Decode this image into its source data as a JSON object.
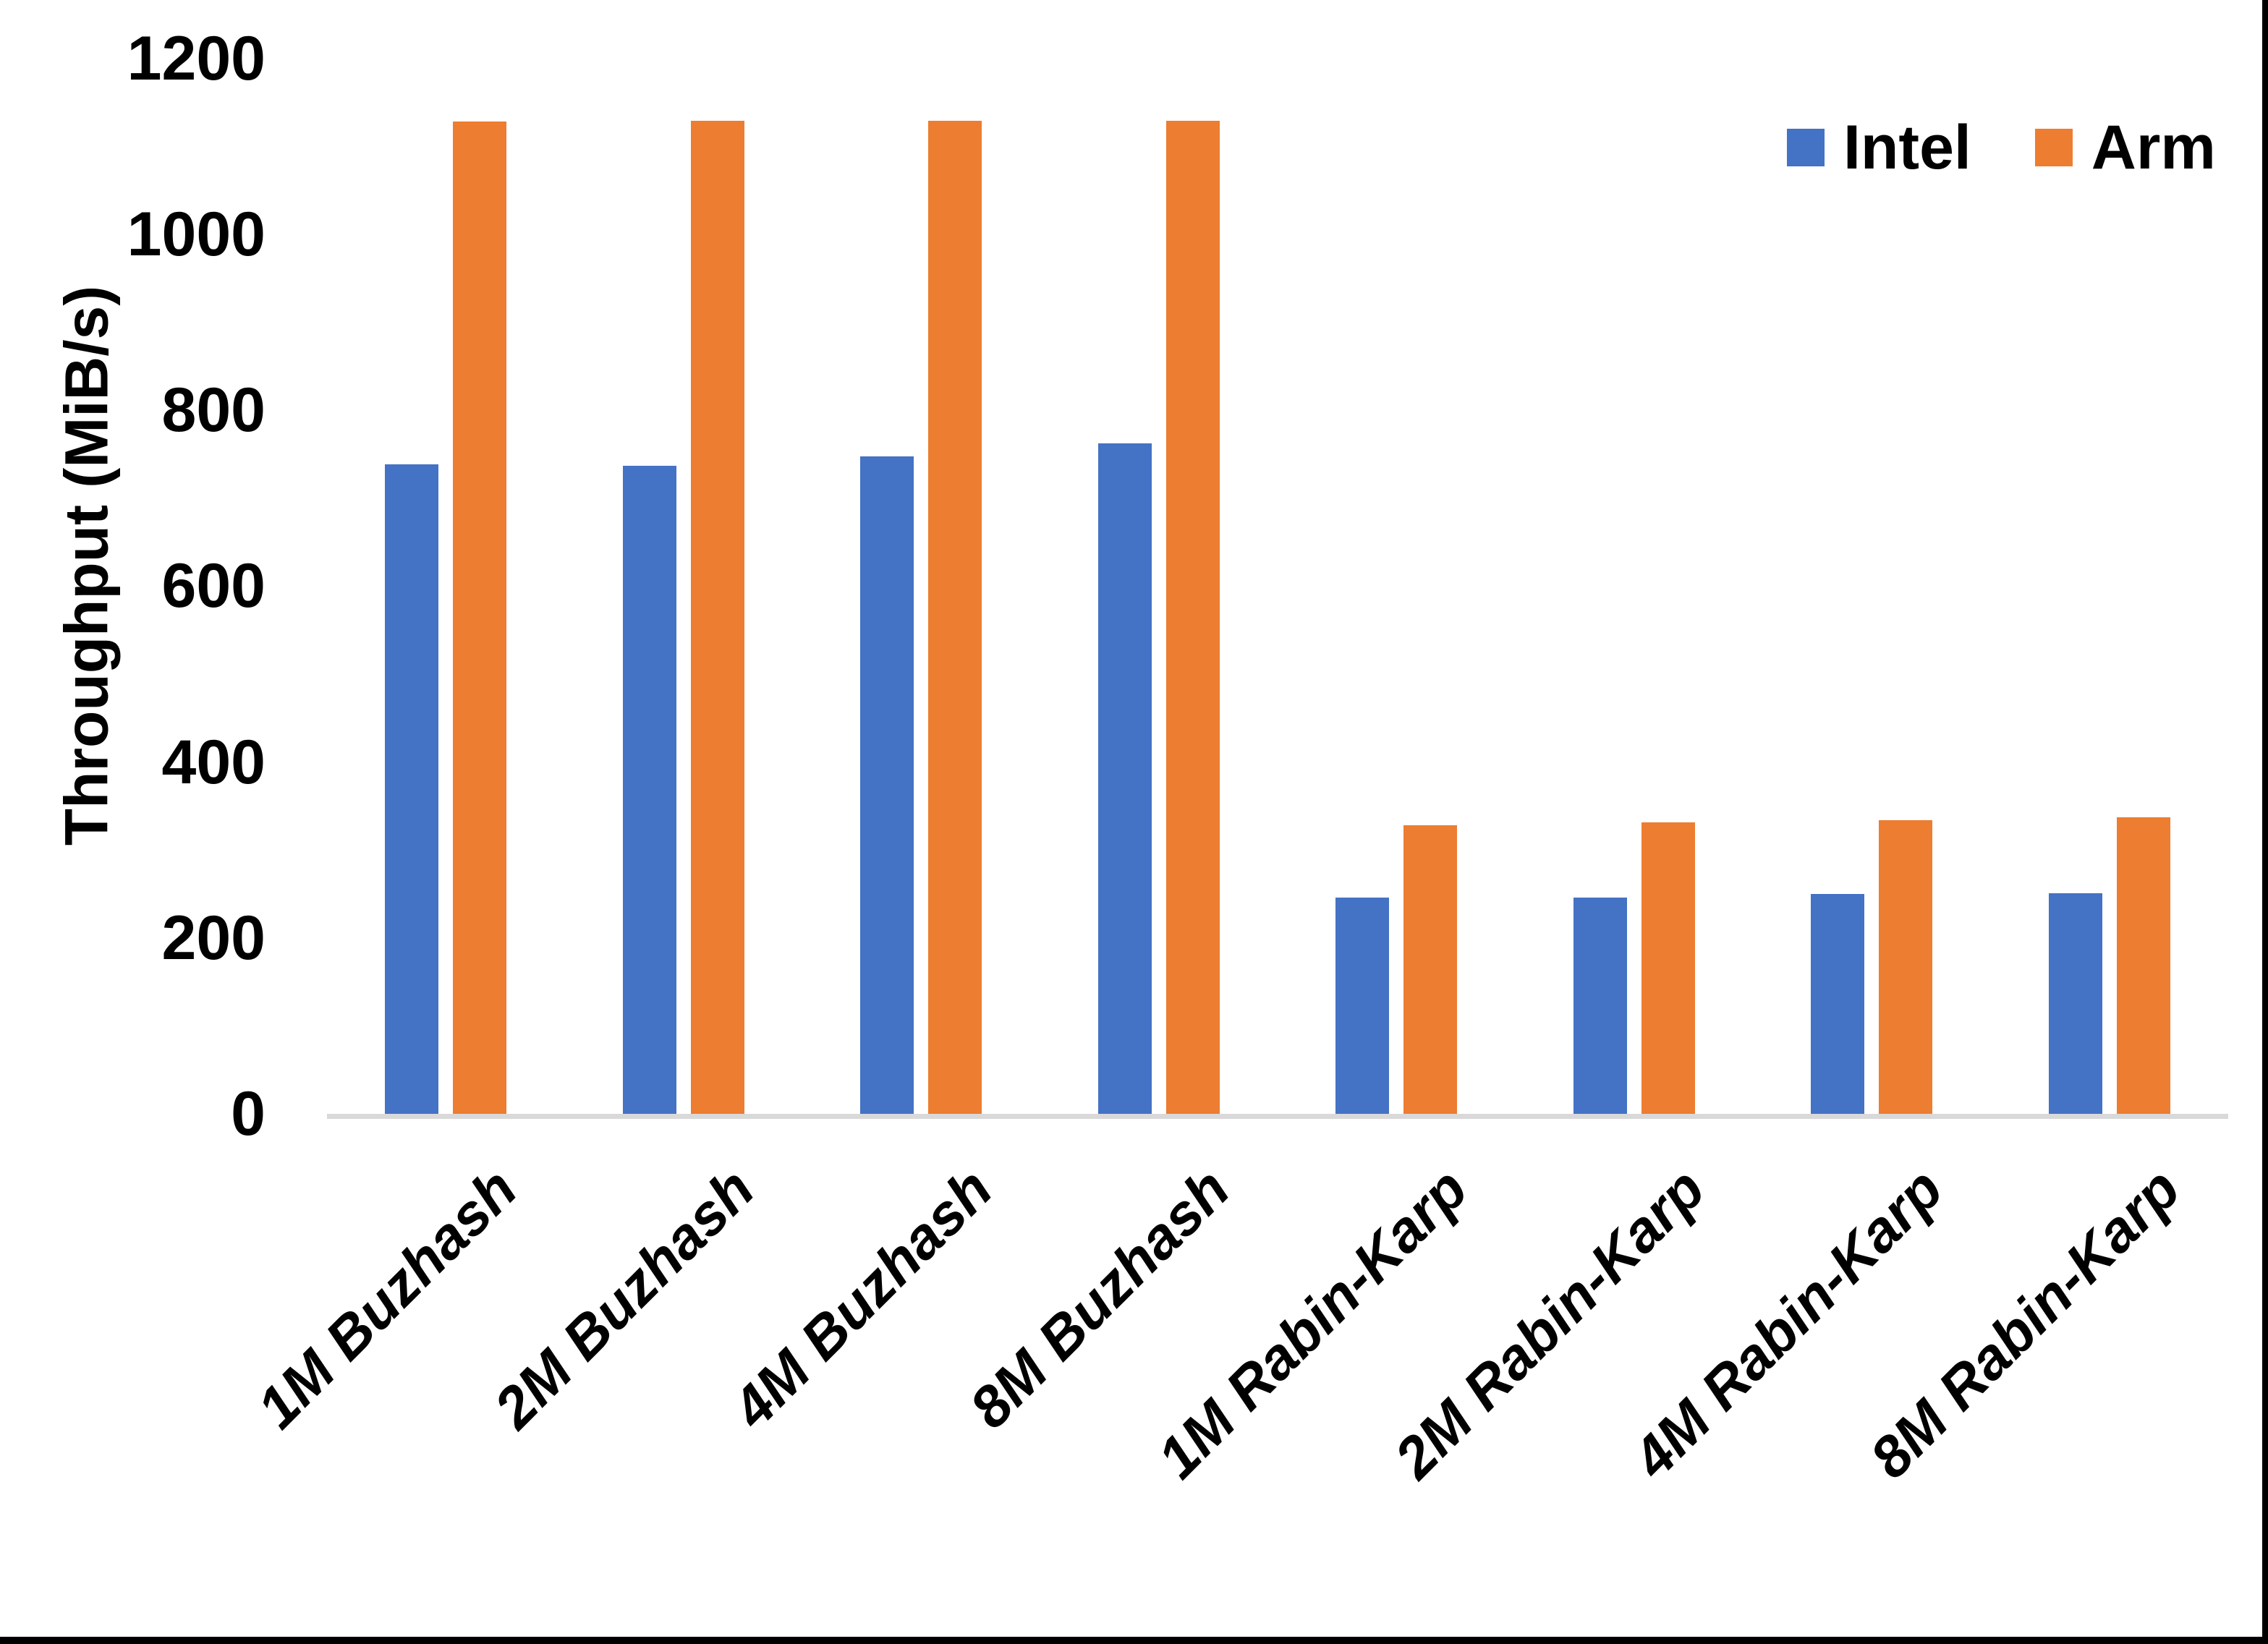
{
  "chart_data": {
    "type": "bar",
    "title": "",
    "xlabel": "",
    "ylabel": "Throughput (MiB/s)",
    "ylim": [
      0,
      1200
    ],
    "yticks": [
      0,
      200,
      400,
      600,
      800,
      1000,
      1200
    ],
    "grid": false,
    "legend_position": "top-right",
    "categories": [
      "1M Buzhash",
      "2M Buzhash",
      "4M Buzhash",
      "8M Buzhash",
      "1M Rabin-Karp",
      "2M Rabin-Karp",
      "4M Rabin-Karp",
      "8M Rabin-Karp"
    ],
    "series": [
      {
        "name": "Intel",
        "color": "#4472C4",
        "values": [
          738,
          737,
          747,
          762,
          246,
          246,
          250,
          251
        ]
      },
      {
        "name": "Arm",
        "color": "#ED7D31",
        "values": [
          1128,
          1129,
          1129,
          1129,
          328,
          331,
          334,
          337
        ]
      }
    ],
    "axis_line_color": "#D9D9D9",
    "text_color": "#000000",
    "background_color": "#FFFFFF",
    "border_color": "#000000"
  }
}
